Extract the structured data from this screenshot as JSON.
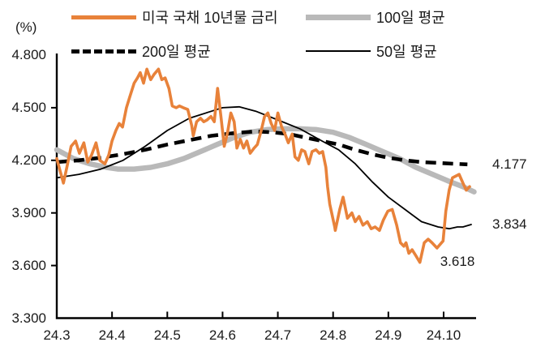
{
  "legend": [
    {
      "label": "미국 국채 10년물 금리",
      "color": "#E8823A",
      "style": "solid",
      "thickness": 5
    },
    {
      "label": "100일 평균",
      "color": "#B9B9B9",
      "style": "solid",
      "thickness": 7
    },
    {
      "label": "200일 평균",
      "color": "#000000",
      "style": "dashed",
      "thickness": 5
    },
    {
      "label": "50일 평균",
      "color": "#000000",
      "style": "solid",
      "thickness": 2
    }
  ],
  "chart_data": {
    "type": "line",
    "y_axis_unit": "(%)",
    "x_unit": "year.month (months after 24.3)",
    "ylim": [
      3.3,
      4.8
    ],
    "grid": false,
    "legend_position": "top",
    "y_ticks": [
      {
        "label": "4.800",
        "value": 4.8
      },
      {
        "label": "4.500",
        "value": 4.5
      },
      {
        "label": "4.200",
        "value": 4.2
      },
      {
        "label": "3.900",
        "value": 3.9
      },
      {
        "label": "3.600",
        "value": 3.6
      },
      {
        "label": "3.300",
        "value": 3.3
      }
    ],
    "x_ticks": [
      {
        "label": "24.3",
        "m": 0
      },
      {
        "label": "24.4",
        "m": 1
      },
      {
        "label": "24.5",
        "m": 2
      },
      {
        "label": "24.6",
        "m": 3
      },
      {
        "label": "24.7",
        "m": 4
      },
      {
        "label": "24.8",
        "m": 5
      },
      {
        "label": "24.9",
        "m": 6
      },
      {
        "label": "24.10",
        "m": 7
      }
    ],
    "annotations": [
      {
        "text": "4.177",
        "series": "200일 평균",
        "m": 7.88,
        "v": 4.177,
        "anchor": "left"
      },
      {
        "text": "3.834",
        "series": "50일 평균",
        "m": 7.88,
        "v": 3.834,
        "anchor": "left"
      },
      {
        "text": "3.618",
        "series": "미국 국채 10년물 금리",
        "m": 7.25,
        "v": 3.62,
        "anchor": "center"
      }
    ],
    "series": [
      {
        "name": "100일 평균",
        "color": "#B9B9B9",
        "width": 6.5,
        "dash": null,
        "points": [
          [
            0,
            4.26
          ],
          [
            0.3,
            4.21
          ],
          [
            0.6,
            4.18
          ],
          [
            0.9,
            4.16
          ],
          [
            1.1,
            4.15
          ],
          [
            1.4,
            4.15
          ],
          [
            1.7,
            4.16
          ],
          [
            2.0,
            4.18
          ],
          [
            2.3,
            4.21
          ],
          [
            2.6,
            4.25
          ],
          [
            2.9,
            4.29
          ],
          [
            3.2,
            4.33
          ],
          [
            3.5,
            4.36
          ],
          [
            3.8,
            4.375
          ],
          [
            4.1,
            4.38
          ],
          [
            4.4,
            4.38
          ],
          [
            4.7,
            4.375
          ],
          [
            5.0,
            4.36
          ],
          [
            5.3,
            4.33
          ],
          [
            5.6,
            4.29
          ],
          [
            5.9,
            4.25
          ],
          [
            6.2,
            4.21
          ],
          [
            6.5,
            4.16
          ],
          [
            6.8,
            4.12
          ],
          [
            7.1,
            4.08
          ],
          [
            7.35,
            4.05
          ],
          [
            7.55,
            4.02
          ]
        ]
      },
      {
        "name": "50일 평균",
        "color": "#000000",
        "width": 1.8,
        "dash": null,
        "points": [
          [
            0,
            4.1
          ],
          [
            0.4,
            4.12
          ],
          [
            0.8,
            4.15
          ],
          [
            1.2,
            4.2
          ],
          [
            1.6,
            4.28
          ],
          [
            2.0,
            4.37
          ],
          [
            2.4,
            4.44
          ],
          [
            2.8,
            4.48
          ],
          [
            3.0,
            4.5
          ],
          [
            3.3,
            4.505
          ],
          [
            3.6,
            4.48
          ],
          [
            4.0,
            4.43
          ],
          [
            4.4,
            4.38
          ],
          [
            4.8,
            4.31
          ],
          [
            5.1,
            4.26
          ],
          [
            5.4,
            4.18
          ],
          [
            5.7,
            4.08
          ],
          [
            6.0,
            3.99
          ],
          [
            6.3,
            3.92
          ],
          [
            6.6,
            3.85
          ],
          [
            6.9,
            3.82
          ],
          [
            7.1,
            3.81
          ],
          [
            7.25,
            3.82
          ],
          [
            7.35,
            3.82
          ],
          [
            7.5,
            3.834
          ]
        ]
      },
      {
        "name": "200일 평균",
        "color": "#000000",
        "width": 4.6,
        "dash": "13 8",
        "points": [
          [
            0,
            4.19
          ],
          [
            0.4,
            4.2
          ],
          [
            0.8,
            4.215
          ],
          [
            1.2,
            4.235
          ],
          [
            1.6,
            4.26
          ],
          [
            2.0,
            4.29
          ],
          [
            2.4,
            4.315
          ],
          [
            2.8,
            4.34
          ],
          [
            3.2,
            4.355
          ],
          [
            3.6,
            4.365
          ],
          [
            3.9,
            4.36
          ],
          [
            4.2,
            4.35
          ],
          [
            4.5,
            4.33
          ],
          [
            4.8,
            4.31
          ],
          [
            5.1,
            4.29
          ],
          [
            5.4,
            4.26
          ],
          [
            5.7,
            4.235
          ],
          [
            6.0,
            4.215
          ],
          [
            6.3,
            4.2
          ],
          [
            6.6,
            4.19
          ],
          [
            6.9,
            4.185
          ],
          [
            7.2,
            4.18
          ],
          [
            7.43,
            4.177
          ]
        ]
      },
      {
        "name": "미국 국채 10년물 금리",
        "color": "#E8823A",
        "width": 3.6,
        "dash": null,
        "points": [
          [
            0,
            4.21
          ],
          [
            0.06,
            4.14
          ],
          [
            0.12,
            4.07
          ],
          [
            0.19,
            4.17
          ],
          [
            0.26,
            4.28
          ],
          [
            0.34,
            4.31
          ],
          [
            0.41,
            4.24
          ],
          [
            0.49,
            4.3
          ],
          [
            0.56,
            4.19
          ],
          [
            0.63,
            4.23
          ],
          [
            0.71,
            4.3
          ],
          [
            0.78,
            4.2
          ],
          [
            0.87,
            4.18
          ],
          [
            0.94,
            4.23
          ],
          [
            1.0,
            4.31
          ],
          [
            1.07,
            4.37
          ],
          [
            1.13,
            4.41
          ],
          [
            1.19,
            4.39
          ],
          [
            1.26,
            4.5
          ],
          [
            1.32,
            4.56
          ],
          [
            1.4,
            4.64
          ],
          [
            1.46,
            4.67
          ],
          [
            1.51,
            4.7
          ],
          [
            1.57,
            4.64
          ],
          [
            1.63,
            4.72
          ],
          [
            1.7,
            4.66
          ],
          [
            1.76,
            4.69
          ],
          [
            1.84,
            4.72
          ],
          [
            1.9,
            4.66
          ],
          [
            1.96,
            4.67
          ],
          [
            2.03,
            4.61
          ],
          [
            2.09,
            4.51
          ],
          [
            2.16,
            4.5
          ],
          [
            2.22,
            4.51
          ],
          [
            2.29,
            4.5
          ],
          [
            2.37,
            4.49
          ],
          [
            2.44,
            4.4
          ],
          [
            2.47,
            4.34
          ],
          [
            2.53,
            4.42
          ],
          [
            2.6,
            4.44
          ],
          [
            2.66,
            4.42
          ],
          [
            2.72,
            4.43
          ],
          [
            2.79,
            4.45
          ],
          [
            2.85,
            4.42
          ],
          [
            2.91,
            4.61
          ],
          [
            2.97,
            4.45
          ],
          [
            3.03,
            4.28
          ],
          [
            3.09,
            4.36
          ],
          [
            3.15,
            4.47
          ],
          [
            3.21,
            4.42
          ],
          [
            3.26,
            4.27
          ],
          [
            3.32,
            4.32
          ],
          [
            3.38,
            4.27
          ],
          [
            3.44,
            4.31
          ],
          [
            3.5,
            4.24
          ],
          [
            3.57,
            4.27
          ],
          [
            3.63,
            4.29
          ],
          [
            3.7,
            4.37
          ],
          [
            3.76,
            4.45
          ],
          [
            3.82,
            4.47
          ],
          [
            3.88,
            4.41
          ],
          [
            3.94,
            4.37
          ],
          [
            4.0,
            4.47
          ],
          [
            4.07,
            4.39
          ],
          [
            4.13,
            4.35
          ],
          [
            4.19,
            4.3
          ],
          [
            4.26,
            4.35
          ],
          [
            4.31,
            4.22
          ],
          [
            4.37,
            4.2
          ],
          [
            4.43,
            4.26
          ],
          [
            4.49,
            4.25
          ],
          [
            4.56,
            4.18
          ],
          [
            4.62,
            4.25
          ],
          [
            4.69,
            4.26
          ],
          [
            4.75,
            4.24
          ],
          [
            4.81,
            4.25
          ],
          [
            4.87,
            4.16
          ],
          [
            4.9,
            4.05
          ],
          [
            4.94,
            3.95
          ],
          [
            5.03,
            3.82
          ],
          [
            5.04,
            3.8
          ],
          [
            5.12,
            3.92
          ],
          [
            5.18,
            3.99
          ],
          [
            5.26,
            3.87
          ],
          [
            5.34,
            3.9
          ],
          [
            5.4,
            3.85
          ],
          [
            5.47,
            3.88
          ],
          [
            5.54,
            3.83
          ],
          [
            5.62,
            3.85
          ],
          [
            5.69,
            3.81
          ],
          [
            5.76,
            3.82
          ],
          [
            5.84,
            3.8
          ],
          [
            5.91,
            3.86
          ],
          [
            5.99,
            3.91
          ],
          [
            6.07,
            3.92
          ],
          [
            6.15,
            3.83
          ],
          [
            6.22,
            3.73
          ],
          [
            6.28,
            3.71
          ],
          [
            6.32,
            3.73
          ],
          [
            6.37,
            3.67
          ],
          [
            6.43,
            3.69
          ],
          [
            6.49,
            3.66
          ],
          [
            6.57,
            3.618
          ],
          [
            6.65,
            3.73
          ],
          [
            6.72,
            3.75
          ],
          [
            6.79,
            3.73
          ],
          [
            6.88,
            3.7
          ],
          [
            6.99,
            3.74
          ],
          [
            7.04,
            3.91
          ],
          [
            7.1,
            4.03
          ],
          [
            7.16,
            4.1
          ],
          [
            7.28,
            4.12
          ],
          [
            7.35,
            4.07
          ],
          [
            7.41,
            4.03
          ],
          [
            7.47,
            4.05
          ]
        ]
      }
    ]
  }
}
